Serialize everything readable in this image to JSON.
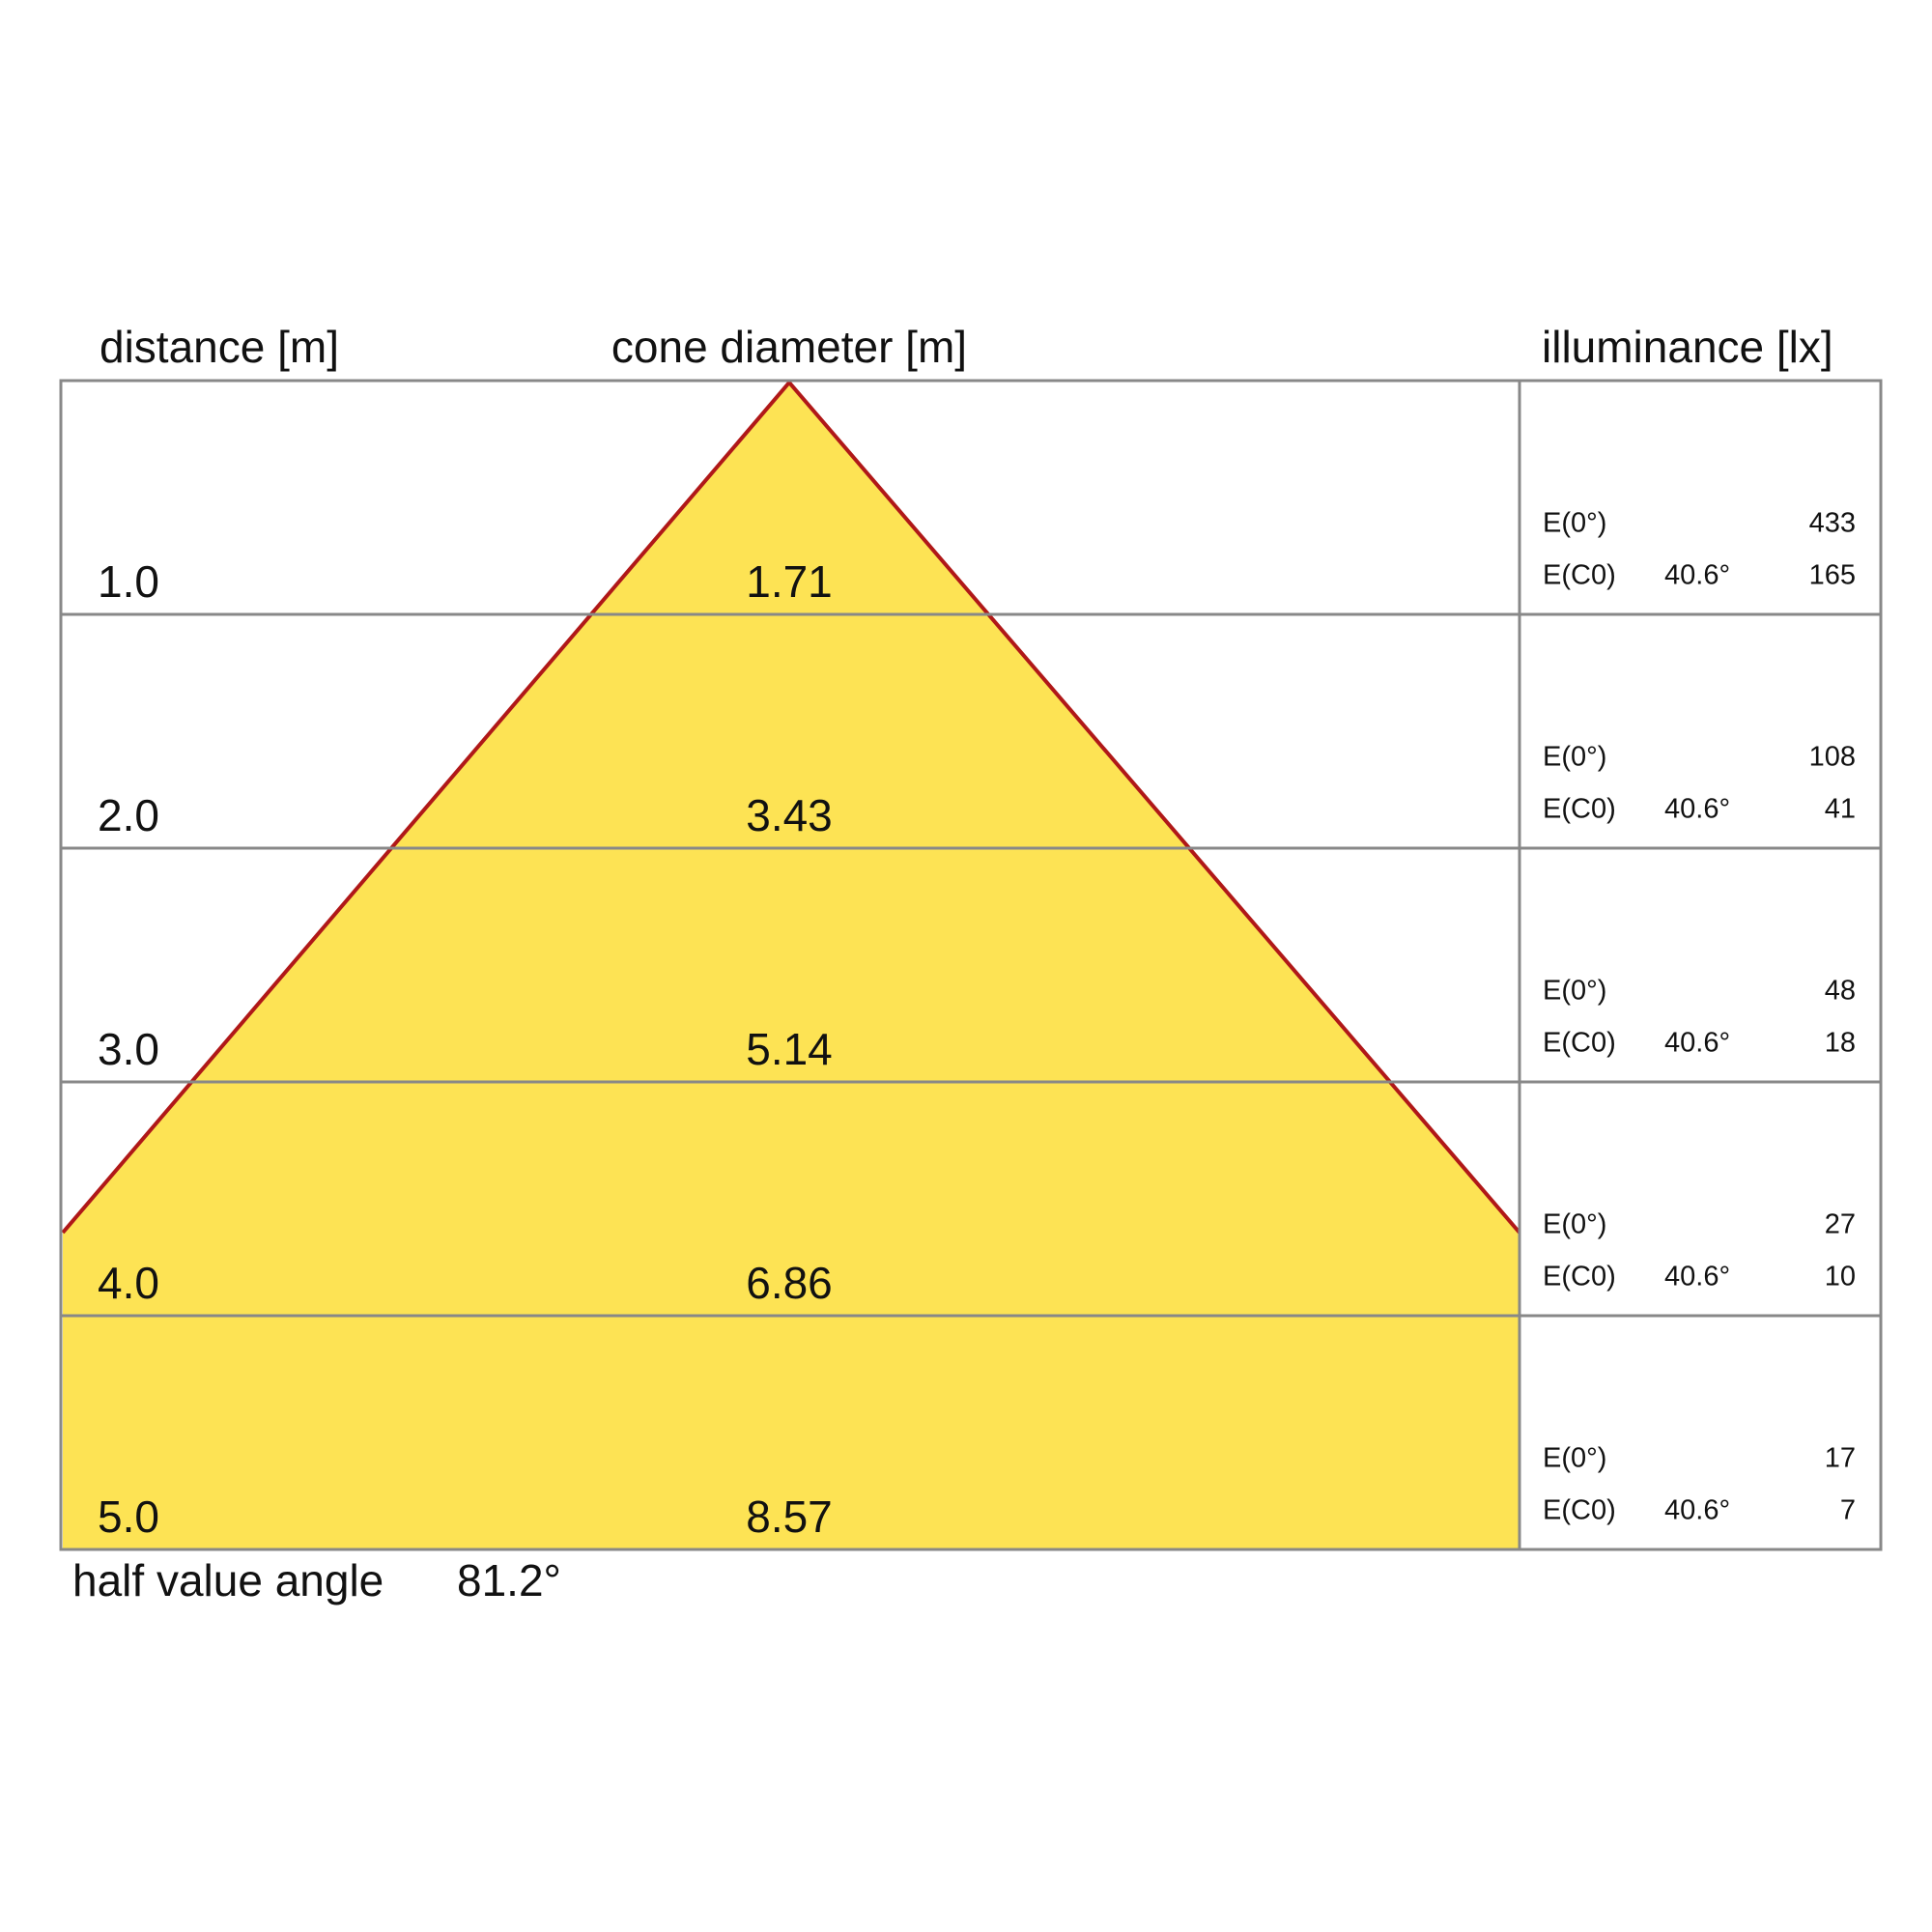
{
  "header": {
    "distance": "distance [m]",
    "diameter": "cone diameter [m]",
    "illuminance": "illuminance [lx]"
  },
  "rows": [
    {
      "distance": "1.0",
      "diameter": "1.71",
      "e0_label": "E(0°)",
      "e0": "433",
      "ec0_label": "E(C0)",
      "angle": "40.6°",
      "ec0": "165"
    },
    {
      "distance": "2.0",
      "diameter": "3.43",
      "e0_label": "E(0°)",
      "e0": "108",
      "ec0_label": "E(C0)",
      "angle": "40.6°",
      "ec0": "41"
    },
    {
      "distance": "3.0",
      "diameter": "5.14",
      "e0_label": "E(0°)",
      "e0": "48",
      "ec0_label": "E(C0)",
      "angle": "40.6°",
      "ec0": "18"
    },
    {
      "distance": "4.0",
      "diameter": "6.86",
      "e0_label": "E(0°)",
      "e0": "27",
      "ec0_label": "E(C0)",
      "angle": "40.6°",
      "ec0": "10"
    },
    {
      "distance": "5.0",
      "diameter": "8.57",
      "e0_label": "E(0°)",
      "e0": "17",
      "ec0_label": "E(C0)",
      "angle": "40.6°",
      "ec0": "7"
    }
  ],
  "footer": {
    "label": "half value angle",
    "value": "81.2°"
  }
}
